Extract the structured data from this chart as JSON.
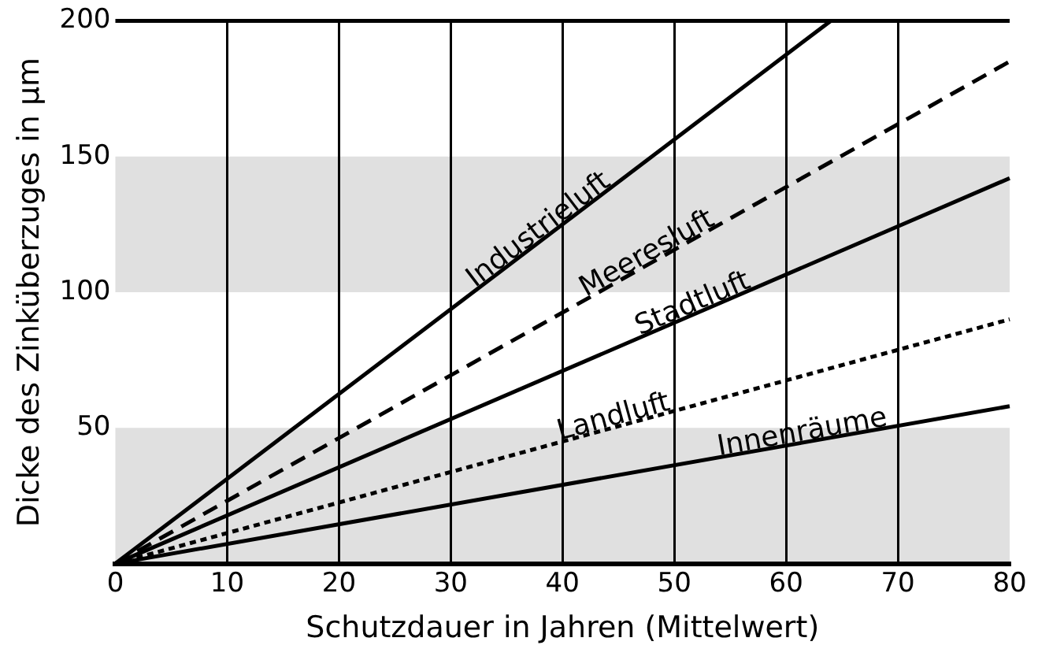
{
  "chart_data": {
    "type": "line",
    "xlabel": "Schutzdauer in Jahren (Mittelwert)",
    "ylabel": "Dicke des Zinküberzuges in µm",
    "xlim": [
      0,
      80
    ],
    "ylim": [
      0,
      200
    ],
    "xticks": [
      0,
      10,
      20,
      30,
      40,
      50,
      60,
      70,
      80
    ],
    "yticks": [
      50,
      100,
      150,
      200
    ],
    "grid": "x",
    "legend": false,
    "bands": [
      {
        "axis": "y",
        "from": 0,
        "to": 50,
        "color": "#e0e0e0"
      },
      {
        "axis": "y",
        "from": 100,
        "to": 150,
        "color": "#e0e0e0"
      }
    ],
    "series": [
      {
        "name": "Industrieluft",
        "color": "#000000",
        "line_style": "solid",
        "x": [
          0,
          64
        ],
        "values": [
          0,
          200
        ]
      },
      {
        "name": "Meeresluft",
        "color": "#000000",
        "line_style": "dashed",
        "x": [
          0,
          80
        ],
        "values": [
          0,
          185
        ]
      },
      {
        "name": "Stadtluft",
        "color": "#000000",
        "line_style": "solid",
        "x": [
          0,
          80
        ],
        "values": [
          0,
          142
        ]
      },
      {
        "name": "Landluft",
        "color": "#000000",
        "line_style": "dotted",
        "x": [
          0,
          80
        ],
        "values": [
          0,
          90
        ]
      },
      {
        "name": "Innenräume",
        "color": "#000000",
        "line_style": "solid",
        "x": [
          0,
          80
        ],
        "values": [
          0,
          58
        ]
      }
    ]
  }
}
